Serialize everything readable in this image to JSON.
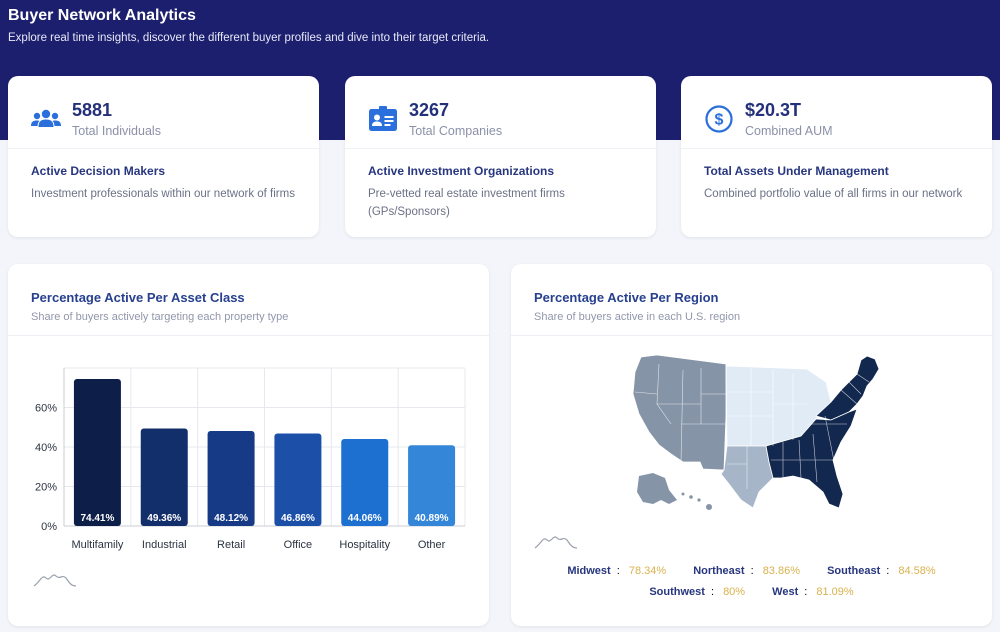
{
  "header": {
    "title": "Buyer Network Analytics",
    "subtitle": "Explore real time insights, discover the different buyer profiles and dive into their target criteria."
  },
  "stats": [
    {
      "icon": "people-icon",
      "value": "5881",
      "label": "Total Individuals",
      "subtitle": "Active Decision Makers",
      "description": "Investment professionals within our network of firms"
    },
    {
      "icon": "id-card-icon",
      "value": "3267",
      "label": "Total Companies",
      "subtitle": "Active Investment Organizations",
      "description": "Pre-vetted real estate investment firms (GPs/Sponsors)"
    },
    {
      "icon": "dollar-circle-icon",
      "value": "$20.3T",
      "label": "Combined AUM",
      "subtitle": "Total Assets Under Management",
      "description": "Combined portfolio value of all firms in our network"
    }
  ],
  "asset_panel": {
    "title": "Percentage Active Per Asset Class",
    "subtitle": "Share of buyers actively targeting each property type"
  },
  "region_panel": {
    "title": "Percentage Active Per Region",
    "subtitle": "Share of buyers active in each U.S. region",
    "legend": [
      {
        "name": "Midwest",
        "value": "78.34%"
      },
      {
        "name": "Northeast",
        "value": "83.86%"
      },
      {
        "name": "Southeast",
        "value": "84.58%"
      },
      {
        "name": "Southwest",
        "value": "80%"
      },
      {
        "name": "West",
        "value": "81.09%"
      }
    ]
  },
  "colors": {
    "banner": "#1c1f6e",
    "accent": "#2a6fdb",
    "bars": [
      "#0d1f48",
      "#132f6b",
      "#163a86",
      "#1c4fa8",
      "#1d6fd0",
      "#3486d9"
    ],
    "map_dark": "#13284f",
    "map_mid": "#8694a8",
    "map_light_mid": "#a6b6c8",
    "map_light": "#e1ebf6"
  },
  "chart_data": {
    "type": "bar",
    "title": "Percentage Active Per Asset Class",
    "categories": [
      "Multifamily",
      "Industrial",
      "Retail",
      "Office",
      "Hospitality",
      "Other"
    ],
    "values": [
      74.41,
      49.36,
      48.12,
      46.86,
      44.06,
      40.89
    ],
    "value_labels": [
      "74.41%",
      "49.36%",
      "48.12%",
      "46.86%",
      "44.06%",
      "40.89%"
    ],
    "yticks": [
      0,
      20,
      40,
      60
    ],
    "ytick_labels": [
      "0%",
      "20%",
      "40%",
      "60%"
    ],
    "ylim": [
      0,
      80
    ],
    "xlabel": "",
    "ylabel": ""
  }
}
